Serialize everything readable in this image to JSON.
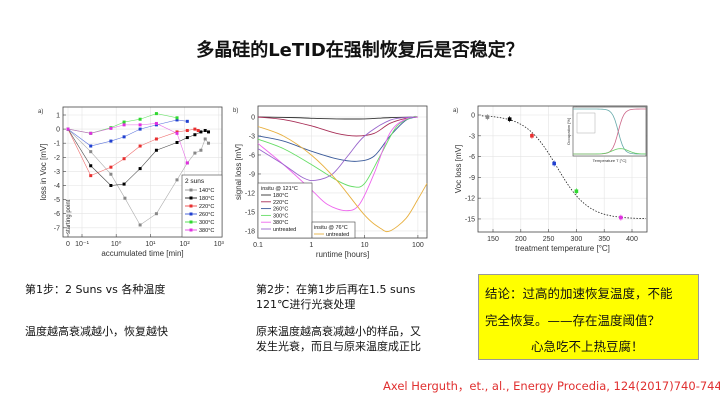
{
  "title": "多晶硅的LeTID在强制恢复后是否稳定？",
  "step1": {
    "heading": "第1步：2 Suns vs 各种温度",
    "note": "温度越高衰减越小，恢复越快"
  },
  "step2": {
    "heading_line1": "第2步：在第1步后再在1.5 suns",
    "heading_line2": "121℃进行光衰处理",
    "note_line1": "原来温度越高衰减越小的样品，又",
    "note_line2": "发生光衰，而且与原来温度成正比"
  },
  "conclusion": {
    "line1": "结论：过高的加速恢复温度，不能",
    "line2": "完全恢复。——存在温度阈值？",
    "line3": "心急吃不上热豆腐！",
    "background": "#ffff00"
  },
  "citation": "Axel Herguth，et., al., Energy Procedia, 124(2017)740-744",
  "chart_data": [
    {
      "panel": "a)",
      "type": "line",
      "xlabel": "accumulated time [min]",
      "ylabel": "loss in Voc [mV]",
      "xscale": "log (with 0 starting point)",
      "xlim": [
        0,
        1000
      ],
      "ylim": [
        -7.6,
        1.6
      ],
      "xticks": [
        {
          "v": 0,
          "label": "0"
        },
        {
          "v": 0.1,
          "label": "10⁻¹"
        },
        {
          "v": 1,
          "label": "10⁰"
        },
        {
          "v": 10,
          "label": "10¹"
        },
        {
          "v": 100,
          "label": "10²"
        },
        {
          "v": 1000,
          "label": "10³"
        }
      ],
      "yticks": [
        1,
        0,
        -1,
        -2,
        -3,
        -4,
        -5,
        -6,
        -7
      ],
      "annotation": "starting point",
      "grid": true,
      "legend": {
        "title": "2 suns",
        "placement": "bottom-right"
      },
      "series": [
        {
          "name": "140°C",
          "color": "#888888",
          "x": [
            0,
            0.18,
            0.7,
            1.8,
            5,
            15,
            60,
            120,
            200,
            300,
            400,
            500
          ],
          "y": [
            0,
            -1.6,
            -3.2,
            -4.9,
            -6.8,
            -6.0,
            -3.6,
            -2.4,
            -1.7,
            -1.5,
            -0.7,
            -1.0
          ]
        },
        {
          "name": "180°C",
          "color": "#000000",
          "x": [
            0,
            0.18,
            0.7,
            1.7,
            5,
            15,
            60,
            120,
            200,
            300,
            400,
            500
          ],
          "y": [
            0,
            -2.6,
            -4.0,
            -3.9,
            -2.8,
            -1.5,
            -0.95,
            -0.6,
            -0.4,
            -0.2,
            -0.1,
            -0.2
          ]
        },
        {
          "name": "220°C",
          "color": "#e83030",
          "x": [
            0,
            0.18,
            0.7,
            1.7,
            5,
            15,
            60,
            120,
            200,
            250
          ],
          "y": [
            0,
            -3.3,
            -2.7,
            -2.1,
            -1.2,
            -0.7,
            -0.2,
            -0.1,
            0,
            -0.1
          ]
        },
        {
          "name": "260°C",
          "color": "#2040d0",
          "x": [
            0,
            0.18,
            0.7,
            1.7,
            5,
            15,
            60,
            120
          ],
          "y": [
            0,
            -1.2,
            -0.85,
            -0.55,
            0,
            0.3,
            0.65,
            0.55
          ]
        },
        {
          "name": "300°C",
          "color": "#30d830",
          "x": [
            0,
            0.18,
            0.7,
            1.7,
            5,
            15,
            60
          ],
          "y": [
            0,
            -0.3,
            0.1,
            0.5,
            0.7,
            1.1,
            0.8
          ]
        },
        {
          "name": "380°C",
          "color": "#e030e0",
          "x": [
            0,
            0.18,
            0.7,
            1.7,
            5,
            15,
            60,
            120
          ],
          "y": [
            0,
            -0.3,
            0.05,
            0.3,
            0.3,
            0.4,
            -0.3,
            -2.4
          ]
        }
      ]
    },
    {
      "panel": "b)",
      "type": "line",
      "xlabel": "runtime [hours]",
      "ylabel": "signal loss [mV]",
      "xscale": "log",
      "xlim": [
        0.1,
        148
      ],
      "ylim": [
        -19.1,
        1.7
      ],
      "xticks": [
        {
          "v": 0.1,
          "label": "0.1"
        },
        {
          "v": 1,
          "label": "1"
        },
        {
          "v": 10,
          "label": "10"
        },
        {
          "v": 100,
          "label": "100"
        }
      ],
      "yticks": [
        0,
        -3,
        -6,
        -9,
        -12,
        -15,
        -18
      ],
      "grid": true,
      "legend": [
        {
          "title": "insitu @ 121°C",
          "placement": "bottom-left"
        },
        {
          "title": "insitu @ 76°C",
          "placement": "bottom-center"
        }
      ],
      "series": [
        {
          "name": "180°C",
          "group": 0,
          "color": "#333333",
          "points": [
            [
              0.1,
              0
            ],
            [
              0.5,
              -0.1
            ],
            [
              1,
              -0.2
            ],
            [
              3,
              -0.3
            ],
            [
              10,
              -0.3
            ],
            [
              30,
              -0.1
            ],
            [
              100,
              0
            ]
          ]
        },
        {
          "name": "220°C",
          "group": 0,
          "color": "#a83058",
          "points": [
            [
              0.1,
              0
            ],
            [
              0.3,
              -0.4
            ],
            [
              1,
              -1.4
            ],
            [
              3,
              -2.6
            ],
            [
              7,
              -3
            ],
            [
              15,
              -2.6
            ],
            [
              30,
              -1
            ],
            [
              60,
              -0.2
            ],
            [
              100,
              0
            ]
          ]
        },
        {
          "name": "260°C",
          "group": 0,
          "color": "#3a5a9a",
          "points": [
            [
              0.1,
              -3
            ],
            [
              0.3,
              -3.8
            ],
            [
              1,
              -5.4
            ],
            [
              3,
              -6.6
            ],
            [
              7,
              -7
            ],
            [
              15,
              -6.2
            ],
            [
              30,
              -3
            ],
            [
              60,
              -0.5
            ],
            [
              100,
              0
            ]
          ]
        },
        {
          "name": "300°C",
          "group": 0,
          "color": "#66dd66",
          "points": [
            [
              0.1,
              -3.5
            ],
            [
              0.3,
              -5
            ],
            [
              1,
              -7.5
            ],
            [
              3,
              -10
            ],
            [
              6,
              -11
            ],
            [
              10,
              -10.5
            ],
            [
              20,
              -6
            ],
            [
              40,
              -1.5
            ],
            [
              80,
              0
            ],
            [
              100,
              0
            ]
          ]
        },
        {
          "name": "380°C",
          "group": 0,
          "color": "#ee66ee",
          "points": [
            [
              0.1,
              -4.2
            ],
            [
              0.3,
              -7.5
            ],
            [
              1,
              -11.5
            ],
            [
              2,
              -13.8
            ],
            [
              4.5,
              -14.8
            ],
            [
              8,
              -13.8
            ],
            [
              15,
              -9
            ],
            [
              30,
              -2.5
            ],
            [
              60,
              -0.3
            ],
            [
              100,
              0
            ]
          ]
        },
        {
          "name": "untreated",
          "group": 0,
          "color": "#9966cc",
          "points": [
            [
              0.1,
              -5
            ],
            [
              0.3,
              -7.5
            ],
            [
              0.7,
              -9.6
            ],
            [
              1.2,
              -10
            ],
            [
              2.5,
              -9
            ],
            [
              5,
              -6
            ],
            [
              10,
              -3
            ],
            [
              30,
              -0.5
            ],
            [
              80,
              0
            ]
          ]
        },
        {
          "name": "untreated",
          "group": 1,
          "color": "#e8b040",
          "points": [
            [
              0.1,
              -1.5
            ],
            [
              0.3,
              -3
            ],
            [
              1,
              -6
            ],
            [
              3,
              -10
            ],
            [
              10,
              -15.5
            ],
            [
              20,
              -17.6
            ],
            [
              30,
              -18
            ],
            [
              60,
              -16
            ],
            [
              100,
              -13
            ],
            [
              148,
              -10.5
            ]
          ]
        }
      ]
    },
    {
      "panel": "a)",
      "type": "scatter",
      "xlabel": "treatment temperature [°C]",
      "ylabel": "Voc loss [mV]",
      "xlim": [
        123,
        427
      ],
      "ylim": [
        -16.9,
        1.3
      ],
      "xticks": [
        {
          "v": 150,
          "label": "150"
        },
        {
          "v": 200,
          "label": "200"
        },
        {
          "v": 250,
          "label": "250"
        },
        {
          "v": 300,
          "label": "300"
        },
        {
          "v": 350,
          "label": "350"
        },
        {
          "v": 400,
          "label": "400"
        }
      ],
      "yticks": [
        0,
        -3,
        -6,
        -9,
        -12,
        -15
      ],
      "grid": true,
      "fit": "dotted sigmoid",
      "points": [
        {
          "x": 140,
          "y": -0.3,
          "color": "#888888"
        },
        {
          "x": 180,
          "y": -0.6,
          "color": "#000000"
        },
        {
          "x": 220,
          "y": -3.0,
          "color": "#e83030"
        },
        {
          "x": 260,
          "y": -7.0,
          "color": "#2040d0"
        },
        {
          "x": 300,
          "y": -11.0,
          "color": "#30d830"
        },
        {
          "x": 380,
          "y": -14.8,
          "color": "#e030e0"
        }
      ],
      "inset": {
        "xlabel": "Temperature T [°C]",
        "ylabel": "Occupation [%]"
      }
    }
  ]
}
